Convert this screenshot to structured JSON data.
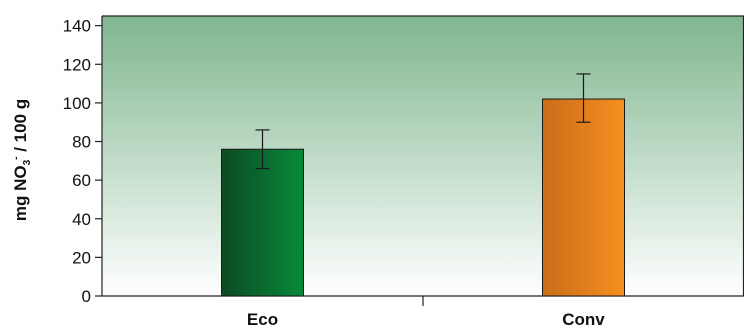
{
  "chart_data": {
    "type": "bar",
    "title": "",
    "xlabel": "",
    "ylabel_parts": {
      "prefix": "mg NO",
      "subscript": "3",
      "superscript": "-",
      "suffix": " / 100 g"
    },
    "categories": [
      "Eco",
      "Conv"
    ],
    "values": [
      76,
      102
    ],
    "error_low": [
      66,
      90
    ],
    "error_high": [
      86,
      115
    ],
    "ylim": [
      0,
      145
    ],
    "y_ticks": [
      0,
      20,
      40,
      60,
      80,
      100,
      120,
      140
    ],
    "grid": false,
    "legend": "none",
    "background_gradient": {
      "top": "#7fb68f",
      "bottom": "#ffffff"
    },
    "bar_colors": [
      {
        "dark": "#0d4a23",
        "light": "#078a3a"
      },
      {
        "dark": "#c96d19",
        "light": "#f58f20"
      }
    ]
  }
}
